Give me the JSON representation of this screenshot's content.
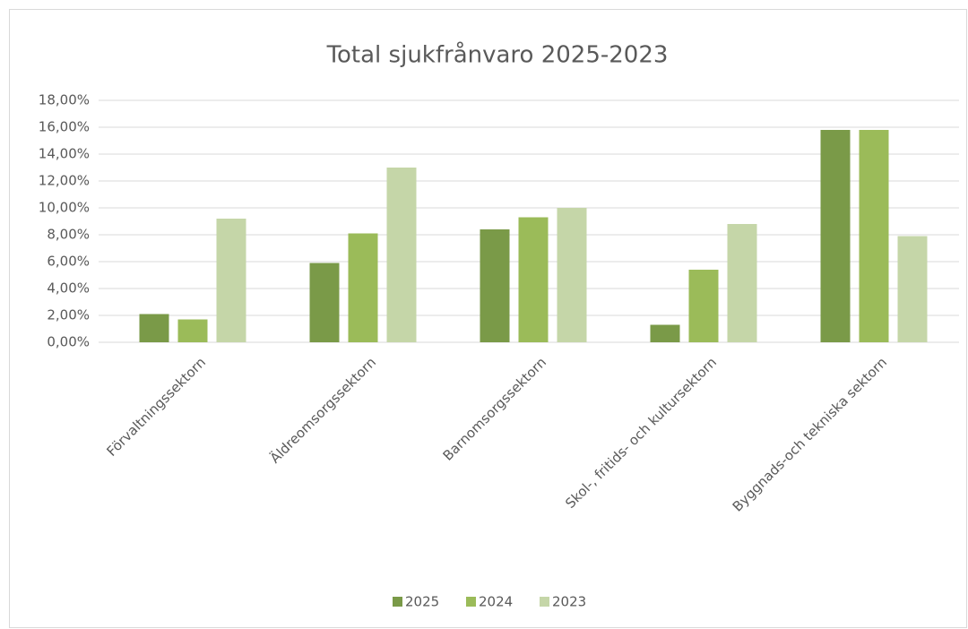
{
  "chart_data": {
    "type": "bar",
    "title": "Total sjukfrånvaro 2025-2023",
    "categories": [
      "Förvaltningssektorn",
      "Äldreomsorgssektorn",
      "Barnomsorgssektorn",
      "Skol-, fritids- och kultursektorn",
      "Byggnads-och tekniska sektorn"
    ],
    "series": [
      {
        "name": "2025",
        "color": "#7a9a48",
        "values": [
          2.1,
          5.9,
          8.4,
          1.3,
          15.8
        ]
      },
      {
        "name": "2024",
        "color": "#9bbb59",
        "values": [
          1.7,
          8.1,
          9.3,
          5.4,
          15.8
        ]
      },
      {
        "name": "2023",
        "color": "#c5d6a8",
        "values": [
          9.2,
          13.0,
          10.0,
          8.8,
          7.9
        ]
      }
    ],
    "ylim": [
      0,
      18
    ],
    "yticks": [
      {
        "value": 0,
        "label": "0,00%"
      },
      {
        "value": 2,
        "label": "2,00%"
      },
      {
        "value": 4,
        "label": "4,00%"
      },
      {
        "value": 6,
        "label": "6,00%"
      },
      {
        "value": 8,
        "label": "8,00%"
      },
      {
        "value": 10,
        "label": "10,00%"
      },
      {
        "value": 12,
        "label": "12,00%"
      },
      {
        "value": 14,
        "label": "14,00%"
      },
      {
        "value": 16,
        "label": "16,00%"
      },
      {
        "value": 18,
        "label": "18,00%"
      }
    ],
    "grid": true,
    "legend": "bottom"
  }
}
